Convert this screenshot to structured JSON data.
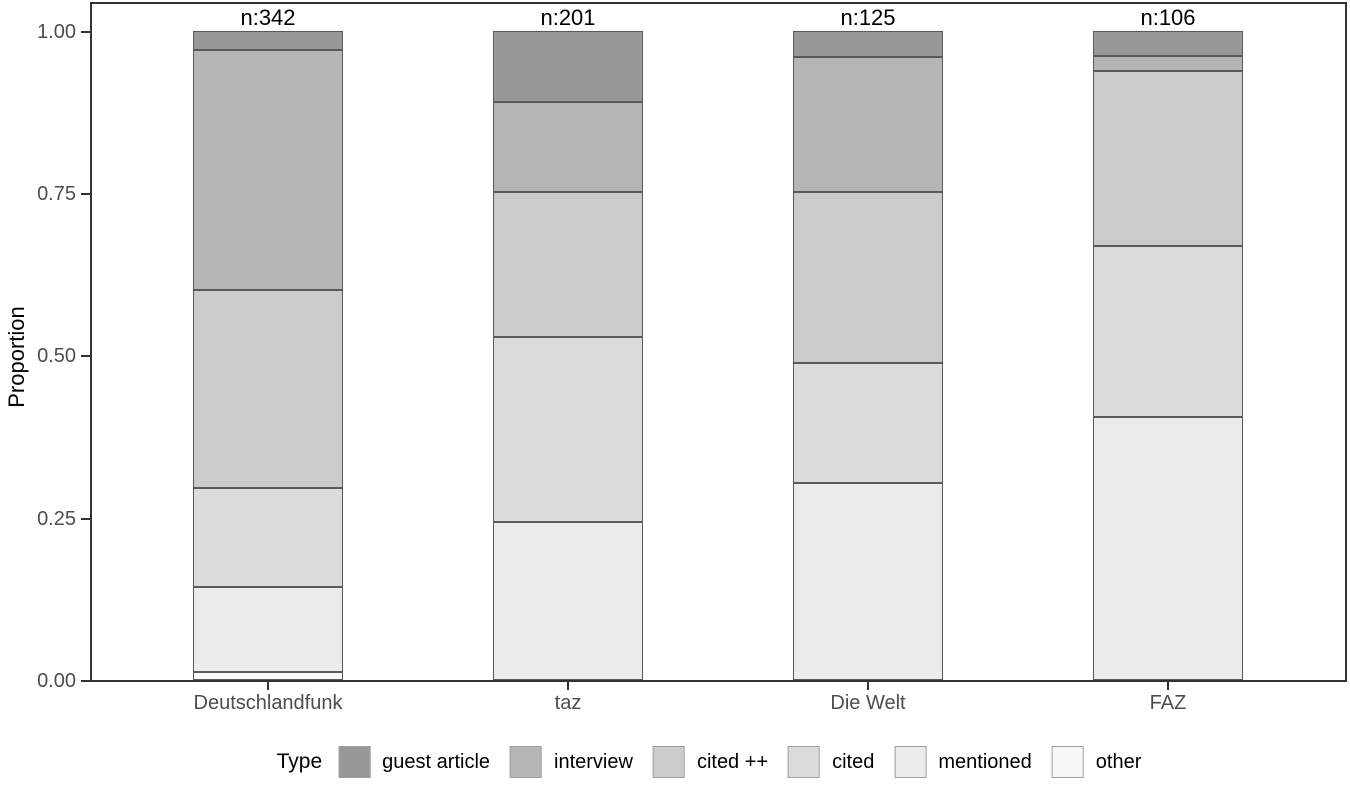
{
  "figure": {
    "ylabel": "Proportion",
    "legend_title": "Type"
  },
  "chart_data": {
    "type": "bar",
    "stacked": true,
    "orientation": "vertical",
    "title": "",
    "xlabel": "",
    "ylabel": "Proportion",
    "ylim": [
      0,
      1
    ],
    "yticks": [
      "0.00",
      "0.25",
      "0.50",
      "0.75",
      "1.00"
    ],
    "ytick_values": [
      0.0,
      0.25,
      0.5,
      0.75,
      1.0
    ],
    "grid": false,
    "categories": [
      "Deutschlandfunk",
      "taz",
      "Die Welt",
      "FAZ"
    ],
    "bar_count_labels": [
      "n:342",
      "n:201",
      "n:125",
      "n:106"
    ],
    "legend": {
      "title": "Type",
      "position": "bottom"
    },
    "series": [
      {
        "name": "guest article",
        "color": "#989898",
        "values": [
          0.029,
          0.109,
          0.04,
          0.038
        ]
      },
      {
        "name": "interview",
        "color": "#b5b5b5",
        "values": [
          0.37,
          0.139,
          0.208,
          0.024
        ]
      },
      {
        "name": "cited ++",
        "color": "#cbcbcb",
        "values": [
          0.305,
          0.224,
          0.264,
          0.269
        ]
      },
      {
        "name": "cited",
        "color": "#dbdbdb",
        "values": [
          0.152,
          0.284,
          0.184,
          0.263
        ]
      },
      {
        "name": "mentioned",
        "color": "#ebebeb",
        "values": [
          0.132,
          0.244,
          0.304,
          0.406
        ]
      },
      {
        "name": "other",
        "color": "#f8f8f8",
        "values": [
          0.012,
          0.0,
          0.0,
          0.0
        ]
      }
    ],
    "colors": {
      "segment_border": "#5a5a5a",
      "panel_border": "#333333",
      "axis_text": "#4d4d4d",
      "text": "#000000",
      "background": "#ffffff"
    }
  }
}
